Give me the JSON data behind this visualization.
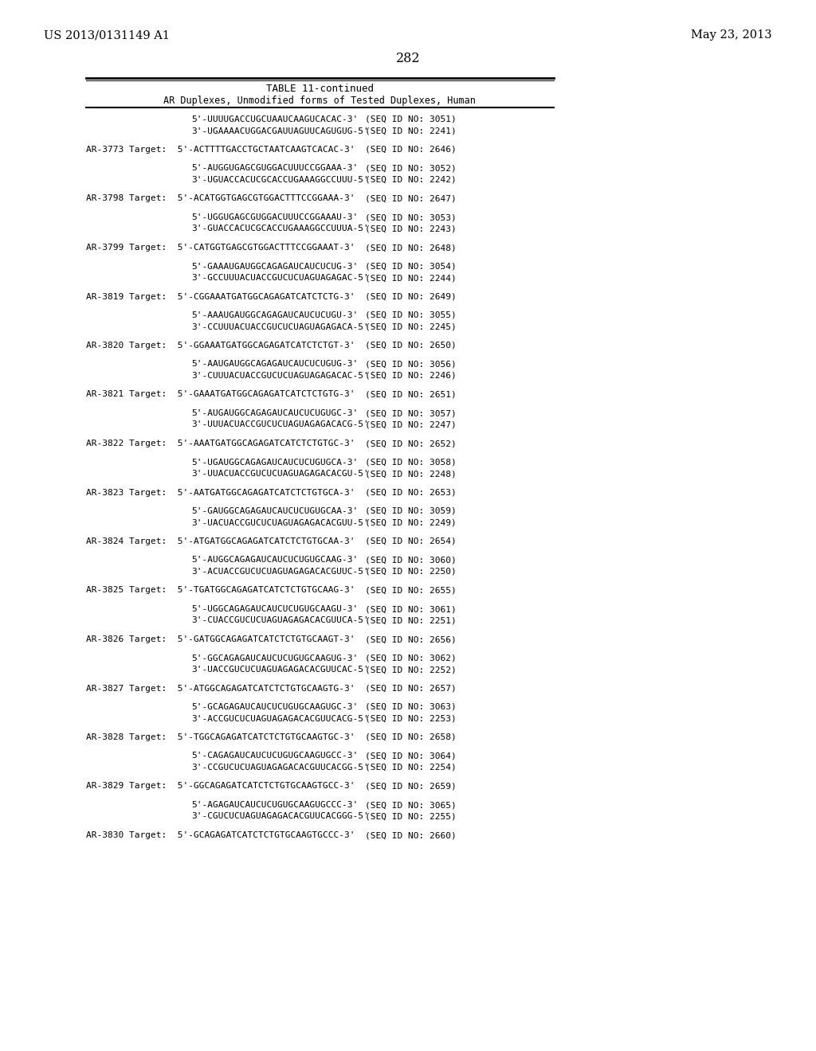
{
  "header_left": "US 2013/0131149 A1",
  "header_right": "May 23, 2013",
  "page_number": "282",
  "table_title": "TABLE 11-continued",
  "table_subtitle": "AR Duplexes, Unmodified forms of Tested Duplexes, Human",
  "content": [
    [
      "target",
      "AR-3773 Target:",
      "5'-ACTTTTGACCTGCTAATCAAGTCACAC-3'",
      "2646"
    ],
    [
      "seq",
      "",
      "5'-AUGGUGAGCGUGGACUUUCCGGAAA-3'",
      "3052"
    ],
    [
      "seq",
      "",
      "3'-UGUACCACUCGCACCUGAAAGGCCUUU-5'",
      "2242"
    ],
    [
      "target",
      "AR-3798 Target:",
      "5'-ACATGGTGAGCGTGGACTTTCCGGAAA-3'",
      "2647"
    ],
    [
      "seq",
      "",
      "5'-UGGUGAGCGUGGACUUUCCGGAAAU-3'",
      "3053"
    ],
    [
      "seq",
      "",
      "3'-GUACCACUCGCACCUGAAAGGCCUUUA-5'",
      "2243"
    ],
    [
      "target",
      "AR-3799 Target:",
      "5'-CATGGTGAGCGTGGACTTTCCGGAAAT-3'",
      "2648"
    ],
    [
      "seq",
      "",
      "5'-GAAAUGAUGGCAGAGAUCAUCUCUG-3'",
      "3054"
    ],
    [
      "seq",
      "",
      "3'-GCCUUUACUACCGUCUCUAGUAGAGAC-5'",
      "2244"
    ],
    [
      "target",
      "AR-3819 Target:",
      "5'-CGGAAATGATGGCAGAGATCATCTCTG-3'",
      "2649"
    ],
    [
      "seq",
      "",
      "5'-AAAUGAUGGCAGAGAUCAUCUCUGU-3'",
      "3055"
    ],
    [
      "seq",
      "",
      "3'-CCUUUACUACCGUCUCUAGUAGAGACA-5'",
      "2245"
    ],
    [
      "target",
      "AR-3820 Target:",
      "5'-GGAAATGATGGCAGAGATCATCTCTGT-3'",
      "2650"
    ],
    [
      "seq",
      "",
      "5'-AAUGAUGGCAGAGAUCAUCUCUGUG-3'",
      "3056"
    ],
    [
      "seq",
      "",
      "3'-CUUUACUACCGUCUCUAGUAGAGACAC-5'",
      "2246"
    ],
    [
      "target",
      "AR-3821 Target:",
      "5'-GAAATGATGGCAGAGATCATCTCTGTG-3'",
      "2651"
    ],
    [
      "seq",
      "",
      "5'-AUGAUGGCAGAGAUCAUCUCUGUGC-3'",
      "3057"
    ],
    [
      "seq",
      "",
      "3'-UUUACUACCGUCUCUAGUAGAGACACG-5'",
      "2247"
    ],
    [
      "target",
      "AR-3822 Target:",
      "5'-AAATGATGGCAGAGATCATCTCTGTGC-3'",
      "2652"
    ],
    [
      "seq",
      "",
      "5'-UGAUGGCAGAGAUCAUCUCUGUGCA-3'",
      "3058"
    ],
    [
      "seq",
      "",
      "3'-UUACUACCGUCUCUAGUAGAGACACGU-5'",
      "2248"
    ],
    [
      "target",
      "AR-3823 Target:",
      "5'-AATGATGGCAGAGATCATCTCTGTGCA-3'",
      "2653"
    ],
    [
      "seq",
      "",
      "5'-GAUGGCAGAGAUCAUCUCUGUGCAA-3'",
      "3059"
    ],
    [
      "seq",
      "",
      "3'-UACUACCGUCUCUAGUAGAGACACGUU-5'",
      "2249"
    ],
    [
      "target",
      "AR-3824 Target:",
      "5'-ATGATGGCAGAGATCATCTCTGTGCAA-3'",
      "2654"
    ],
    [
      "seq",
      "",
      "5'-AUGGCAGAGAUCAUCUCUGUGCAAG-3'",
      "3060"
    ],
    [
      "seq",
      "",
      "3'-ACUACCGUCUCUAGUAGAGACACGUUC-5'",
      "2250"
    ],
    [
      "target",
      "AR-3825 Target:",
      "5'-TGATGGCAGAGATCATCTCTGTGCAAG-3'",
      "2655"
    ],
    [
      "seq",
      "",
      "5'-UGGCAGAGAUCAUCUCUGUGCAAGU-3'",
      "3061"
    ],
    [
      "seq",
      "",
      "3'-CUACCGUCUCUAGUAGAGACACGUUCA-5'",
      "2251"
    ],
    [
      "target",
      "AR-3826 Target:",
      "5'-GATGGCAGAGATCATCTCTGTGCAAGT-3'",
      "2656"
    ],
    [
      "seq",
      "",
      "5'-GGCAGAGAUCAUCUCUGUGCAAGUG-3'",
      "3062"
    ],
    [
      "seq",
      "",
      "3'-UACCGUCUCUAGUAGAGACACGUUCAC-5'",
      "2252"
    ],
    [
      "target",
      "AR-3827 Target:",
      "5'-ATGGCAGAGATCATCTCTGTGCAAGTG-3'",
      "2657"
    ],
    [
      "seq",
      "",
      "5'-GCAGAGAUCAUCUCUGUGCAAGUGC-3'",
      "3063"
    ],
    [
      "seq",
      "",
      "3'-ACCGUCUCUAGUAGAGACACGUUCACG-5'",
      "2253"
    ],
    [
      "target",
      "AR-3828 Target:",
      "5'-TGGCAGAGATCATCTCTGTGCAAGTGC-3'",
      "2658"
    ],
    [
      "seq",
      "",
      "5'-CAGAGAUCAUCUCUGUGCAAGUGCC-3'",
      "3064"
    ],
    [
      "seq",
      "",
      "3'-CCGUCUCUAGUAGAGACACGUUCACGG-5'",
      "2254"
    ],
    [
      "target",
      "AR-3829 Target:",
      "5'-GGCAGAGATCATCTCTGTGCAAGTGCC-3'",
      "2659"
    ],
    [
      "seq",
      "",
      "5'-AGAGAUCAUCUCUGUGCAAGUGCCC-3'",
      "3065"
    ],
    [
      "seq",
      "",
      "3'-CGUCUCUAGUAGAGACACGUUCACGGG-5'",
      "2255"
    ],
    [
      "target",
      "AR-3830 Target:",
      "5'-GCAGAGATCATCTCTGTGCAAGTGCCC-3'",
      "2660"
    ]
  ],
  "first_seqs": [
    [
      "5'-UUUUGACCUGCUAAUCAAGUCACAC-3'",
      "3051"
    ],
    [
      "3'-UGAAAACUGGACGAUUAGUUCAGUGUG-5'",
      "2241"
    ]
  ]
}
